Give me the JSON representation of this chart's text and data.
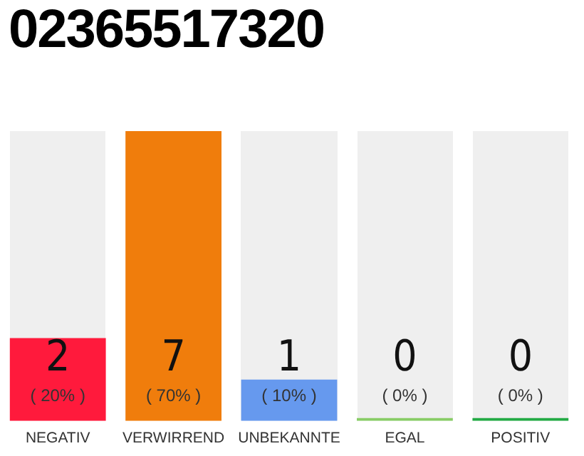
{
  "chart_data": {
    "type": "bar",
    "title": "02365517320",
    "categories": [
      "NEGATIV",
      "VERWIRREND",
      "UNBEKANNTE",
      "EGAL",
      "POSITIV"
    ],
    "values": [
      2,
      7,
      1,
      0,
      0
    ],
    "colors": [
      "#ff1a3c",
      "#f07d0c",
      "#6699ee",
      "#88cc66",
      "#22aa44"
    ],
    "value_labels": [
      "2\n( 20% )",
      "7\n( 70% )",
      "1\n( 10% )",
      "0\n( 0% )",
      "0\n( 0% )"
    ],
    "ylim": [
      0,
      7
    ],
    "tick_labels": "x",
    "grid": false,
    "legend": false
  }
}
